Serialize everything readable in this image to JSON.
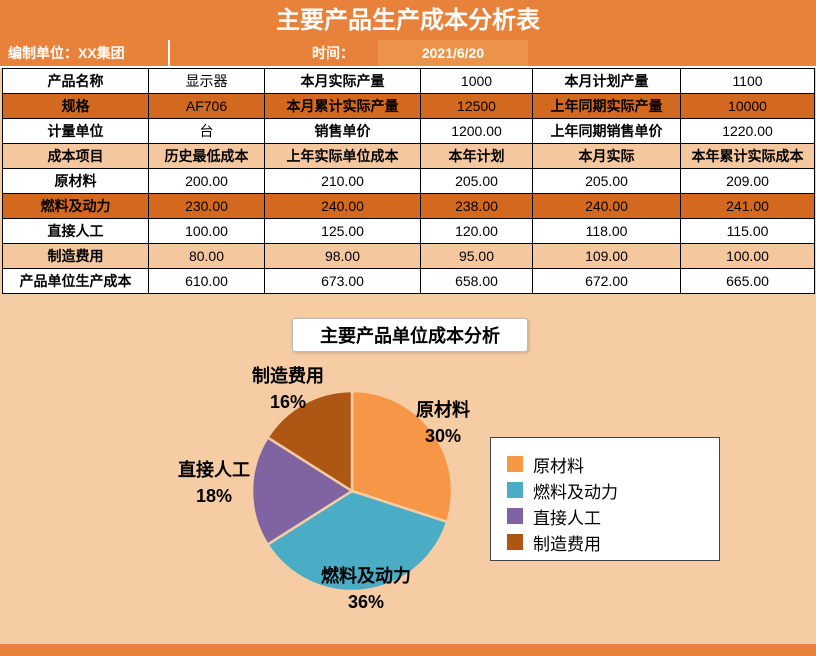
{
  "header": {
    "title": "主要产品生产成本分析表",
    "prepared_by": "编制单位：XX集团",
    "time_label": "时间：",
    "date": "2021/6/20"
  },
  "table": {
    "rows": [
      {
        "style": "white",
        "cells": [
          "产品名称",
          "显示器",
          "本月实际产量",
          "1000",
          "本月计划产量",
          "1100"
        ]
      },
      {
        "style": "orange",
        "cells": [
          "规格",
          "AF706",
          "本月累计实际产量",
          "12500",
          "上年同期实际产量",
          "10000"
        ]
      },
      {
        "style": "white",
        "cells": [
          "计量单位",
          "台",
          "销售单价",
          "1200.00",
          "上年同期销售单价",
          "1220.00"
        ]
      },
      {
        "style": "peach",
        "cells": [
          "成本项目",
          "历史最低成本",
          "上年实际单位成本",
          "本年计划",
          "本月实际",
          "本年累计实际成本"
        ],
        "header": true
      },
      {
        "style": "white",
        "cells": [
          "原材料",
          "200.00",
          "210.00",
          "205.00",
          "205.00",
          "209.00"
        ]
      },
      {
        "style": "orange",
        "cells": [
          "燃料及动力",
          "230.00",
          "240.00",
          "238.00",
          "240.00",
          "241.00"
        ]
      },
      {
        "style": "white",
        "cells": [
          "直接人工",
          "100.00",
          "125.00",
          "120.00",
          "118.00",
          "115.00"
        ]
      },
      {
        "style": "peach",
        "cells": [
          "制造费用",
          "80.00",
          "98.00",
          "95.00",
          "109.00",
          "100.00"
        ]
      },
      {
        "style": "white",
        "cells": [
          "产品单位生产成本",
          "610.00",
          "673.00",
          "658.00",
          "672.00",
          "665.00"
        ]
      }
    ]
  },
  "chart_data": {
    "type": "pie",
    "title": "主要产品单位成本分析",
    "slices": [
      {
        "label": "原材料",
        "pct": 30,
        "color": "#F79646"
      },
      {
        "label": "燃料及动力",
        "pct": 36,
        "color": "#4BACC6"
      },
      {
        "label": "直接人工",
        "pct": 18,
        "color": "#8064A2"
      },
      {
        "label": "制造费用",
        "pct": 16,
        "color": "#AE5714"
      }
    ],
    "start_angle_deg": 0,
    "direction": "clockwise",
    "legend_position": "right"
  },
  "colors": {
    "band_orange": "#E8823B",
    "row_orange": "#D2691E",
    "row_peach": "#F4C79E",
    "page_bg": "#F5CCA3"
  }
}
